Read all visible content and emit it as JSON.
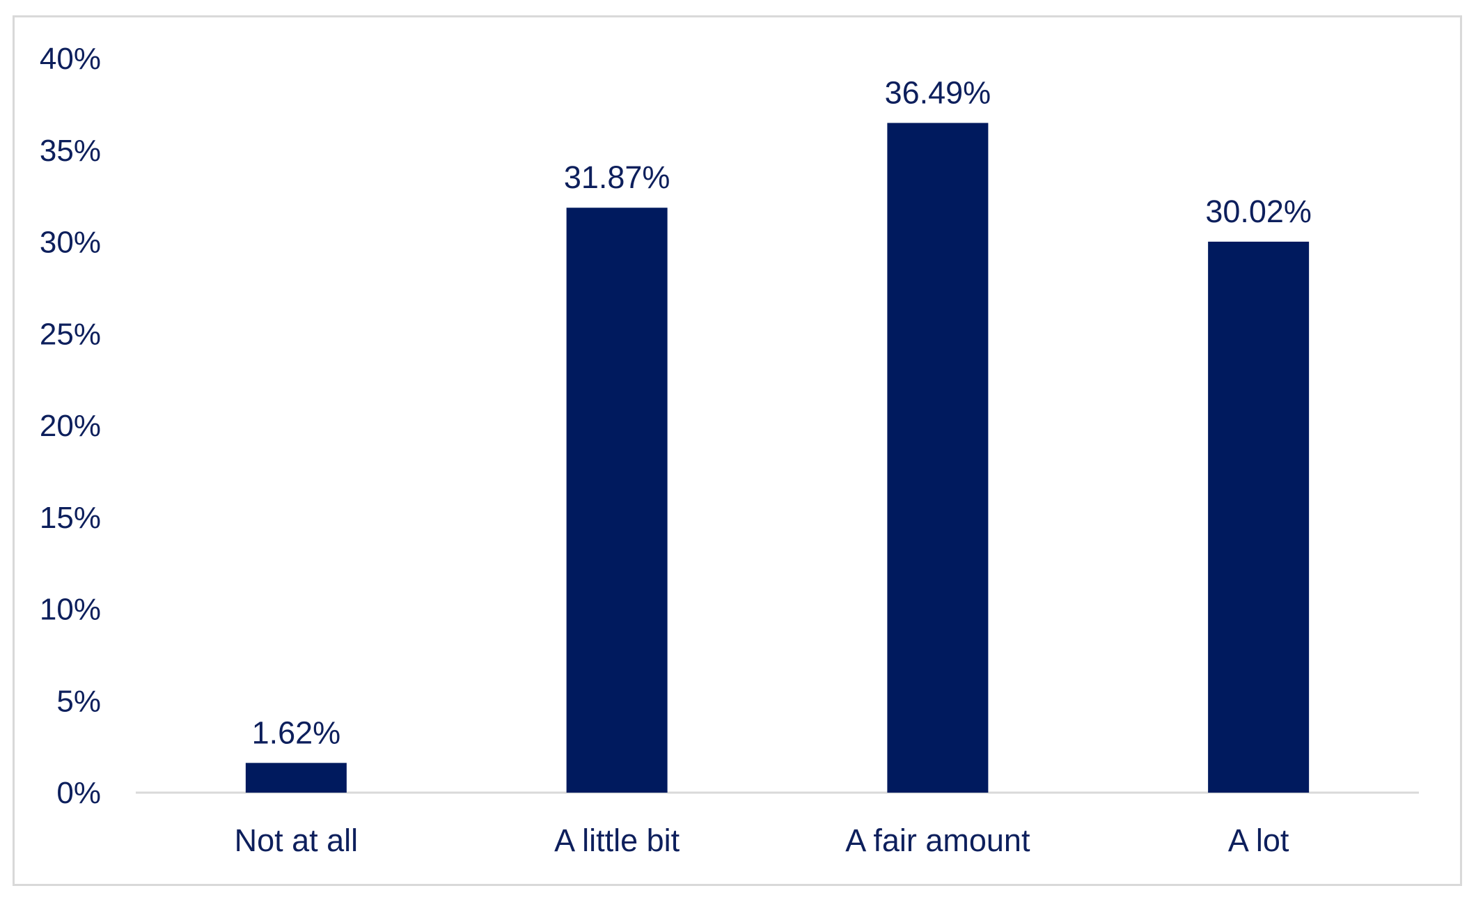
{
  "chart_data": {
    "type": "bar",
    "categories": [
      "Not at all",
      "A little bit",
      "A fair amount",
      "A lot"
    ],
    "values": [
      1.62,
      31.87,
      36.49,
      30.02
    ],
    "data_labels": [
      "1.62%",
      "31.87%",
      "36.49%",
      "30.02%"
    ],
    "title": "",
    "xlabel": "",
    "ylabel": "",
    "ylim": [
      0,
      40
    ],
    "yticks": [
      0,
      5,
      10,
      15,
      20,
      25,
      30,
      35,
      40
    ],
    "ytick_labels": [
      "0%",
      "5%",
      "10%",
      "15%",
      "20%",
      "25%",
      "30%",
      "35%",
      "40%"
    ],
    "grid": false,
    "legend": "none",
    "bar_color": "#001a5e",
    "text_color": "#0d1f5c",
    "axis_color": "#d9d9d9"
  }
}
